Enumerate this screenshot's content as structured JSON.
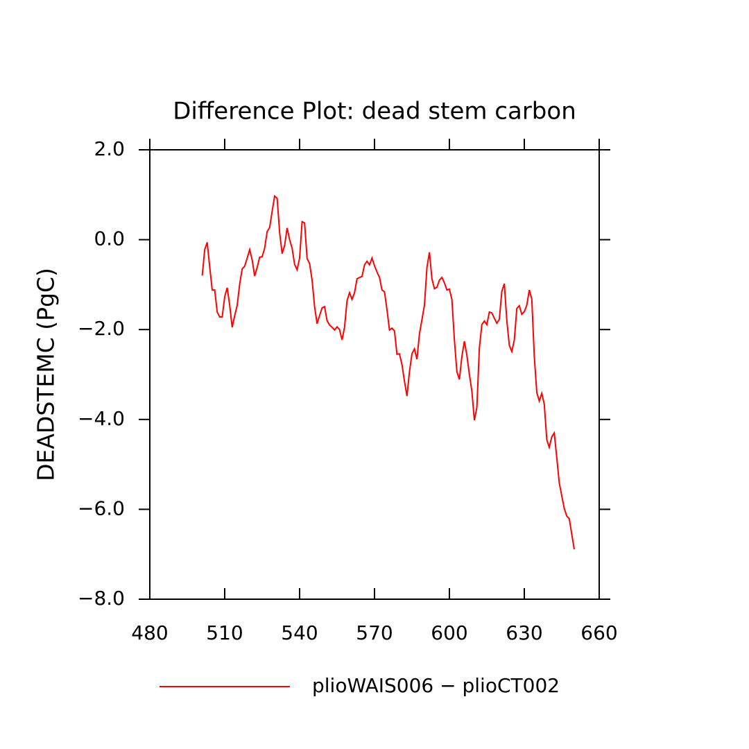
{
  "chart_data": {
    "type": "line",
    "title": "Difference Plot: dead stem carbon",
    "y_label": "DEADSTEMC  (PgC)",
    "x": [
      501,
      502,
      503,
      504,
      505,
      506,
      507,
      508,
      509,
      510,
      511,
      512,
      513,
      514,
      515,
      516,
      517,
      518,
      519,
      520,
      521,
      522,
      523,
      524,
      525,
      526,
      527,
      528,
      529,
      530,
      531,
      532,
      533,
      534,
      535,
      536,
      537,
      538,
      539,
      540,
      541,
      542,
      543,
      544,
      545,
      546,
      547,
      548,
      549,
      550,
      551,
      552,
      553,
      554,
      555,
      556,
      557,
      558,
      559,
      560,
      561,
      562,
      563,
      564,
      565,
      566,
      567,
      568,
      569,
      570,
      571,
      572,
      573,
      574,
      575,
      576,
      577,
      578,
      579,
      580,
      581,
      582,
      583,
      584,
      585,
      586,
      587,
      588,
      589,
      590,
      591,
      592,
      593,
      594,
      595,
      596,
      597,
      598,
      599,
      600,
      601,
      602,
      603,
      604,
      605,
      606,
      607,
      608,
      609,
      610,
      611,
      612,
      613,
      614,
      615,
      616,
      617,
      618,
      619,
      620,
      621,
      622,
      623,
      624,
      625,
      626,
      627,
      628,
      629,
      630,
      631,
      632,
      633,
      634,
      635,
      636,
      637,
      638,
      639,
      640,
      641,
      642,
      643,
      644,
      645,
      646,
      647,
      648,
      649,
      650
    ],
    "series": [
      {
        "name": "plioWAIS006 − plioCT002",
        "color": "#ff0000",
        "values": [
          -0.8,
          -0.22,
          -0.06,
          -0.61,
          -1.12,
          -1.12,
          -1.61,
          -1.72,
          -1.72,
          -1.27,
          -1.07,
          -1.46,
          -1.95,
          -1.69,
          -1.46,
          -0.99,
          -0.65,
          -0.59,
          -0.41,
          -0.22,
          -0.45,
          -0.81,
          -0.62,
          -0.39,
          -0.38,
          -0.19,
          0.18,
          0.27,
          0.63,
          0.97,
          0.92,
          0.16,
          -0.31,
          -0.13,
          0.26,
          0.0,
          -0.19,
          -0.55,
          -0.67,
          -0.41,
          0.4,
          0.37,
          -0.42,
          -0.53,
          -0.9,
          -1.49,
          -1.87,
          -1.69,
          -1.52,
          -1.49,
          -1.8,
          -1.9,
          -1.95,
          -2.01,
          -1.94,
          -2.0,
          -2.23,
          -1.95,
          -1.36,
          -1.18,
          -1.33,
          -1.18,
          -0.87,
          -0.84,
          -0.82,
          -0.56,
          -0.48,
          -0.56,
          -0.41,
          -0.58,
          -0.72,
          -0.84,
          -1.12,
          -1.16,
          -1.56,
          -2.01,
          -1.97,
          -2.03,
          -2.55,
          -2.54,
          -2.78,
          -3.15,
          -3.48,
          -2.94,
          -2.54,
          -2.43,
          -2.66,
          -2.1,
          -1.78,
          -1.46,
          -0.62,
          -0.28,
          -0.87,
          -1.09,
          -1.06,
          -0.9,
          -0.84,
          -0.96,
          -1.12,
          -1.1,
          -1.33,
          -2.23,
          -2.94,
          -3.11,
          -2.6,
          -2.26,
          -2.57,
          -3.0,
          -3.37,
          -4.02,
          -3.73,
          -2.41,
          -1.89,
          -1.81,
          -1.89,
          -1.61,
          -1.63,
          -1.75,
          -1.86,
          -1.77,
          -1.15,
          -0.98,
          -1.8,
          -2.35,
          -2.49,
          -2.23,
          -1.53,
          -1.47,
          -1.66,
          -1.6,
          -1.46,
          -1.12,
          -1.32,
          -2.6,
          -3.4,
          -3.59,
          -3.42,
          -3.66,
          -4.45,
          -4.62,
          -4.39,
          -4.3,
          -4.85,
          -5.41,
          -5.7,
          -5.98,
          -6.15,
          -6.21,
          -6.55,
          -6.89
        ]
      }
    ],
    "xlim": [
      480,
      660
    ],
    "xticks": [
      480,
      510,
      540,
      570,
      600,
      630,
      660
    ],
    "ylim": [
      -8,
      2
    ],
    "yticks": [
      {
        "value": -8,
        "label": "−8.0"
      },
      {
        "value": -6,
        "label": "−6.0"
      },
      {
        "value": -4,
        "label": "−4.0"
      },
      {
        "value": -2,
        "label": "−2.0"
      },
      {
        "value": 0,
        "label": "0.0"
      },
      {
        "value": 2,
        "label": "2.0"
      }
    ]
  }
}
